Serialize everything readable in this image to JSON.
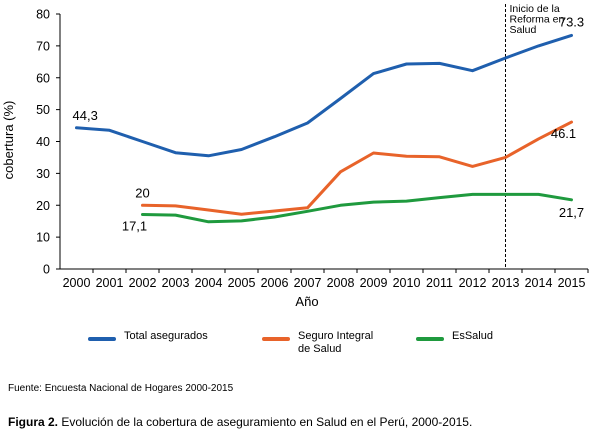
{
  "chart_data": {
    "type": "line",
    "ylabel": "cobertura (%)",
    "xlabel": "Año",
    "ylim": [
      0,
      80
    ],
    "yticks": [
      0,
      10,
      20,
      30,
      40,
      50,
      60,
      70,
      80
    ],
    "x": [
      2000,
      2001,
      2002,
      2003,
      2004,
      2005,
      2006,
      2007,
      2008,
      2009,
      2010,
      2011,
      2012,
      2013,
      2014,
      2015
    ],
    "grid": false,
    "legend_position": "bottom",
    "series": [
      {
        "name": "Total asegurados",
        "color": "#1f5fae",
        "x": [
          2000,
          2001,
          2002,
          2003,
          2004,
          2005,
          2006,
          2007,
          2008,
          2009,
          2010,
          2011,
          2012,
          2013,
          2014,
          2015
        ],
        "values": [
          44.3,
          43.5,
          40,
          36.5,
          35.5,
          37.5,
          41.5,
          45.8,
          53.5,
          61.3,
          64.3,
          64.5,
          62.2,
          66.2,
          70,
          73.3
        ]
      },
      {
        "name": "Seguro Integral\nde Salud",
        "color": "#e8632a",
        "x": [
          2002,
          2003,
          2004,
          2005,
          2006,
          2007,
          2008,
          2009,
          2010,
          2011,
          2012,
          2013,
          2014,
          2015
        ],
        "values": [
          20,
          19.8,
          18.5,
          17.2,
          18.2,
          19.2,
          30.5,
          36.4,
          35.4,
          35.2,
          32.2,
          35,
          40.8,
          46.1
        ]
      },
      {
        "name": "EsSalud",
        "color": "#1f9a3e",
        "x": [
          2002,
          2003,
          2004,
          2005,
          2006,
          2007,
          2008,
          2009,
          2010,
          2011,
          2012,
          2013,
          2014,
          2015
        ],
        "values": [
          17.1,
          16.9,
          14.8,
          15.1,
          16.3,
          18.1,
          20,
          21,
          21.3,
          22.4,
          23.4,
          23.4,
          23.4,
          21.7
        ]
      }
    ],
    "data_labels": [
      {
        "series": 0,
        "x": 2000,
        "text": "44,3"
      },
      {
        "series": 0,
        "x": 2015,
        "text": "73.3"
      },
      {
        "series": 1,
        "x": 2002,
        "text": "20"
      },
      {
        "series": 1,
        "x": 2015,
        "text": "46.1"
      },
      {
        "series": 2,
        "x": 2002,
        "text": "17,1"
      },
      {
        "series": 2,
        "x": 2015,
        "text": "21,7"
      }
    ],
    "annotation": {
      "x": 2013,
      "style": "dashed-vertical-line",
      "text": [
        "Inicio de la",
        "Reforma en",
        "Salud"
      ]
    }
  },
  "source": "Fuente: Encuesta Nacional de Hogares 2000-2015",
  "caption": {
    "label": "Figura 2.",
    "text": " Evolución de la cobertura de aseguramiento en Salud en el Perú, 2000-2015."
  }
}
